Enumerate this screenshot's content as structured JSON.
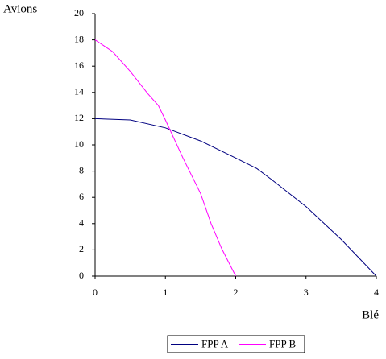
{
  "chart_data": {
    "type": "line",
    "x_label": "Blé",
    "y_label": "Avions",
    "xlim": [
      0,
      4
    ],
    "xticks": [
      0,
      1,
      2,
      3,
      4
    ],
    "ylim": [
      0,
      20
    ],
    "yticks": [
      0,
      2,
      4,
      6,
      8,
      10,
      12,
      14,
      16,
      18,
      20
    ],
    "legend": "bottom",
    "series": [
      {
        "name": "FPP A",
        "color": "#000080",
        "x": [
          0,
          0.5,
          1,
          1.5,
          2,
          2.3,
          2.5,
          3,
          3.5,
          4
        ],
        "values": [
          12,
          11.9,
          11.3,
          10.3,
          9,
          8.2,
          7.4,
          5.3,
          2.8,
          0
        ]
      },
      {
        "name": "FPP B",
        "color": "#ff00ff",
        "x": [
          0,
          0.25,
          0.5,
          0.75,
          0.9,
          1,
          1.25,
          1.5,
          1.65,
          1.8,
          2
        ],
        "values": [
          18,
          17.1,
          15.6,
          13.9,
          13,
          11.9,
          9,
          6.3,
          4,
          2.1,
          0
        ]
      }
    ]
  }
}
